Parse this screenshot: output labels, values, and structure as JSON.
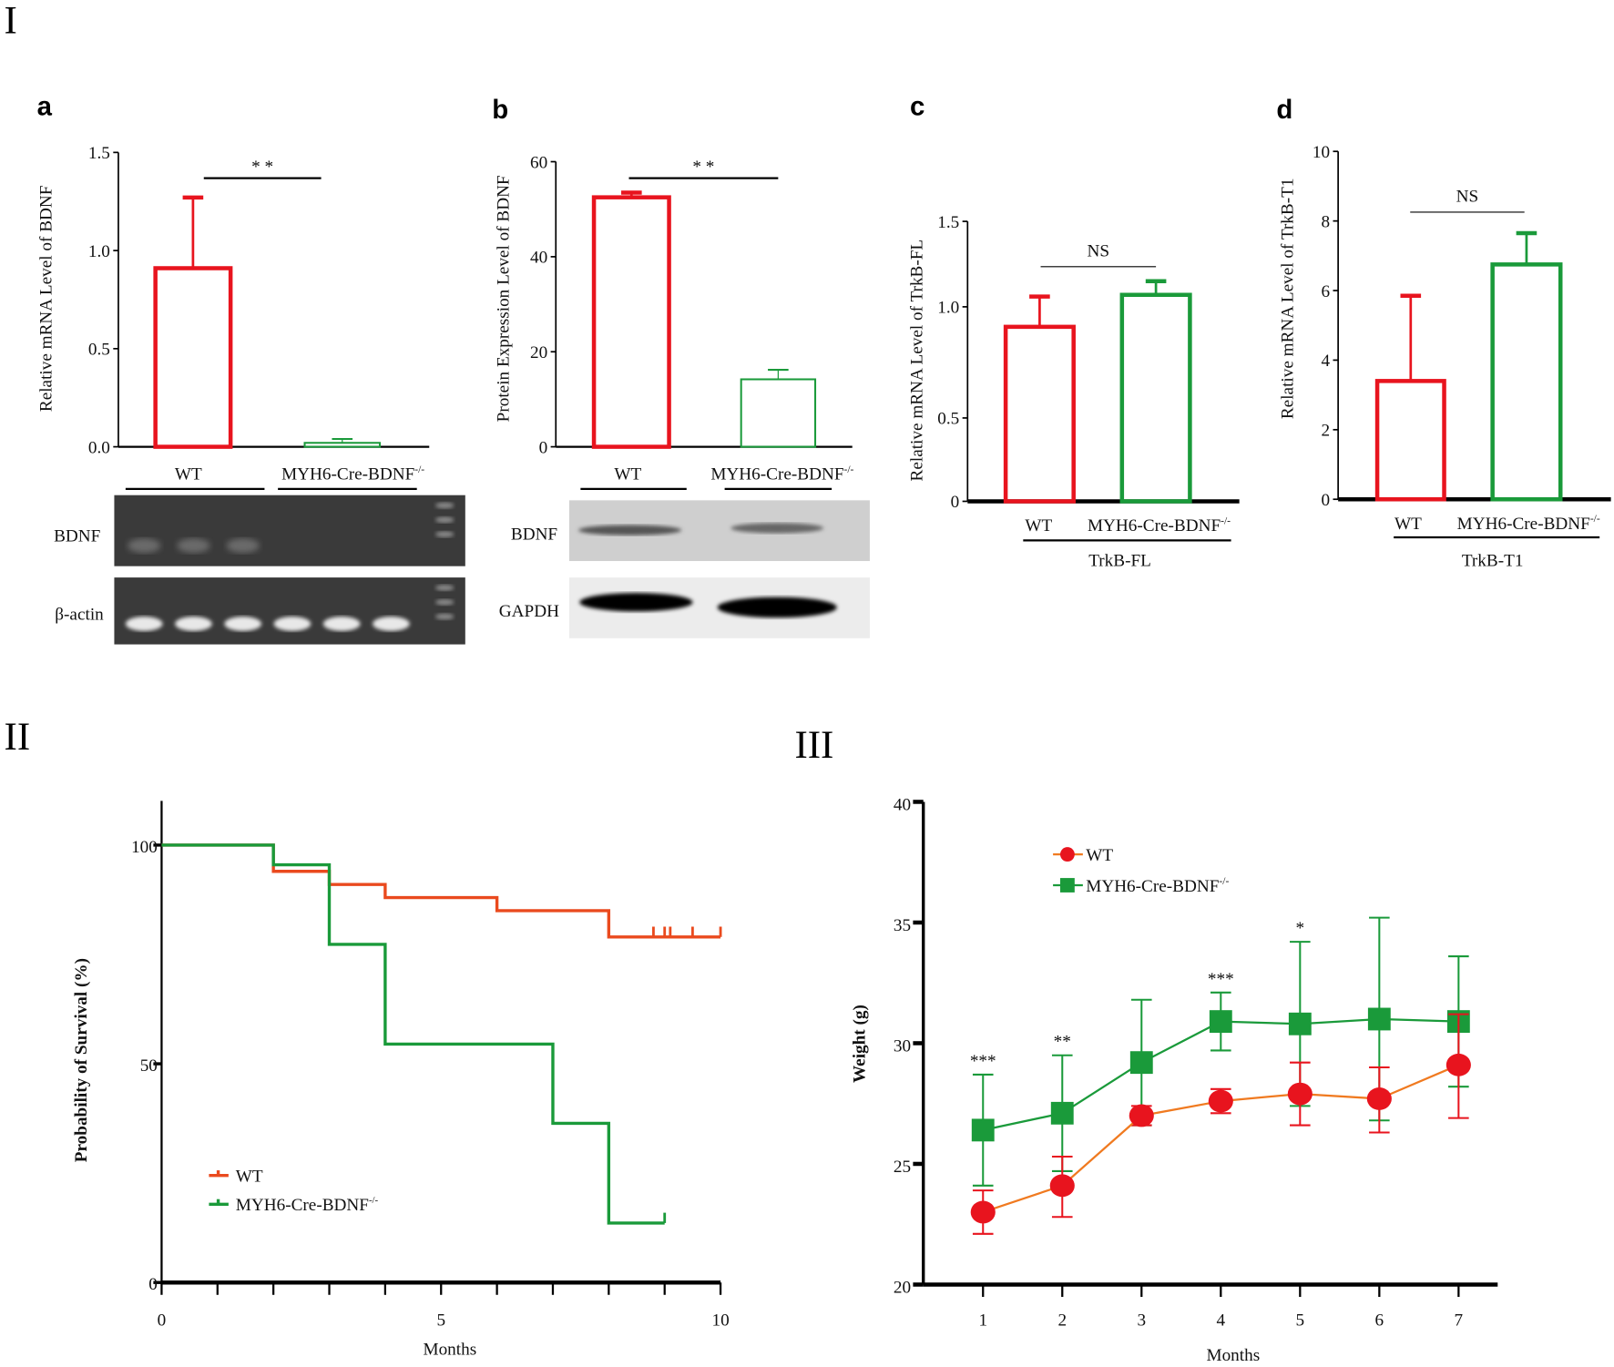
{
  "figure_labels": {
    "I": "I",
    "II": "II",
    "III": "III",
    "a": "a",
    "b": "b",
    "c": "c",
    "d": "d"
  },
  "colors": {
    "wt": "#e8141e",
    "ko": "#1a9a3a",
    "wt_line": "#f07a20",
    "wt_survival": "#ea4a1e",
    "axis": "#000000"
  },
  "chart_data": [
    {
      "id": "a",
      "type": "bar",
      "ylabel": "Relative mRNA Level of BDNF",
      "ylim": [
        0,
        1.5
      ],
      "yticks": [
        "0.0",
        "0.5",
        "1.0",
        "1.5"
      ],
      "ytick_values": [
        0,
        0.5,
        1.0,
        1.5
      ],
      "categories": [
        "WT",
        "MYH6-Cre-BDNF-/-"
      ],
      "values": [
        0.91,
        0.02
      ],
      "error_upper": [
        1.27,
        0.04
      ],
      "significance": "* *",
      "gel": {
        "rows": [
          "BDNF",
          "β-actin"
        ]
      }
    },
    {
      "id": "b",
      "type": "bar",
      "ylabel": "Protein Expression Level of BDNF",
      "ylim": [
        0,
        60
      ],
      "yticks": [
        "0",
        "20",
        "40",
        "60"
      ],
      "ytick_values": [
        0,
        20,
        40,
        60
      ],
      "categories": [
        "WT",
        "MYH6-Cre-BDNF-/-"
      ],
      "values": [
        52.5,
        14.2
      ],
      "error_upper": [
        53.5,
        16.2
      ],
      "significance": "* *",
      "blot": {
        "rows": [
          "BDNF",
          "GAPDH"
        ]
      }
    },
    {
      "id": "c",
      "type": "bar",
      "ylabel": "Relative mRNA Level of TrkB-FL",
      "ylim": [
        0,
        1.5
      ],
      "yticks": [
        "0",
        "0.5",
        "1.0",
        "1.5"
      ],
      "ytick_values": [
        0,
        0.5,
        1.0,
        1.5
      ],
      "categories": [
        "WT",
        "MYH6-Cre-BDNF-/-"
      ],
      "group_label": "TrkB-FL",
      "values": [
        0.91,
        1.07
      ],
      "error_upper": [
        1.06,
        1.15
      ],
      "significance": "NS"
    },
    {
      "id": "d",
      "type": "bar",
      "ylabel": "Relative mRNA Level of TrkB-T1",
      "ylim": [
        0,
        10
      ],
      "yticks": [
        "0",
        "2",
        "4",
        "6",
        "8",
        "10"
      ],
      "ytick_values": [
        0,
        2,
        4,
        6,
        8,
        10
      ],
      "categories": [
        "WT",
        "MYH6-Cre-BDNF-/-"
      ],
      "group_label": "TrkB-T1",
      "values": [
        3.4,
        6.75
      ],
      "error_upper": [
        5.85,
        7.65
      ],
      "significance": "NS"
    },
    {
      "id": "II",
      "type": "line",
      "subtype": "kaplan-meier",
      "xlabel": "Months",
      "ylabel": "Probability of Survival (%)",
      "xlim": [
        0,
        10
      ],
      "ylim": [
        0,
        100
      ],
      "xticks": [
        "0",
        "5",
        "10"
      ],
      "xtick_values": [
        0,
        5,
        10
      ],
      "yticks": [
        "0",
        "50",
        "100"
      ],
      "ytick_values": [
        0,
        50,
        100
      ],
      "legend_position": "bottom-left",
      "series": [
        {
          "name": "WT",
          "steps": [
            [
              0,
              100
            ],
            [
              2,
              94
            ],
            [
              3,
              91
            ],
            [
              4,
              88
            ],
            [
              6,
              85
            ],
            [
              8,
              79
            ],
            [
              10,
              79
            ]
          ],
          "censored": [
            8.8,
            9.0,
            9.1,
            9.5,
            10
          ]
        },
        {
          "name": "MYH6-Cre-BDNF-/-",
          "steps": [
            [
              0,
              100
            ],
            [
              2,
              95.5
            ],
            [
              3,
              77.3
            ],
            [
              4,
              54.5
            ],
            [
              7,
              36.4
            ],
            [
              8,
              13.6
            ],
            [
              9,
              13.6
            ]
          ],
          "censored": [
            9
          ]
        }
      ]
    },
    {
      "id": "III",
      "type": "line",
      "xlabel": "Months",
      "ylabel": "Weight (g)",
      "x": [
        1,
        2,
        3,
        4,
        5,
        6,
        7
      ],
      "xticks": [
        "1",
        "2",
        "3",
        "4",
        "5",
        "6",
        "7"
      ],
      "ylim": [
        20,
        40
      ],
      "yticks": [
        "20",
        "25",
        "30",
        "35",
        "40"
      ],
      "ytick_values": [
        20,
        25,
        30,
        35,
        40
      ],
      "legend_position": "top-left",
      "series": [
        {
          "name": "WT",
          "values": [
            23.0,
            24.1,
            27.0,
            27.6,
            27.9,
            27.7,
            29.1
          ],
          "err_low": [
            22.1,
            22.8,
            26.6,
            27.1,
            26.6,
            26.3,
            26.9
          ],
          "err_high": [
            23.9,
            25.3,
            27.4,
            28.1,
            29.2,
            29.0,
            31.2
          ]
        },
        {
          "name": "MYH6-Cre-BDNF-/-",
          "values": [
            26.4,
            27.1,
            29.2,
            30.9,
            30.8,
            31.0,
            30.9
          ],
          "err_low": [
            24.1,
            24.7,
            26.6,
            29.7,
            27.4,
            26.8,
            28.2
          ],
          "err_high": [
            28.7,
            29.5,
            31.8,
            32.1,
            34.2,
            35.2,
            33.6
          ]
        }
      ],
      "annotations": [
        {
          "x": 1,
          "text": "***"
        },
        {
          "x": 2,
          "text": "**"
        },
        {
          "x": 4,
          "text": "***"
        },
        {
          "x": 5,
          "text": "*"
        }
      ]
    }
  ]
}
